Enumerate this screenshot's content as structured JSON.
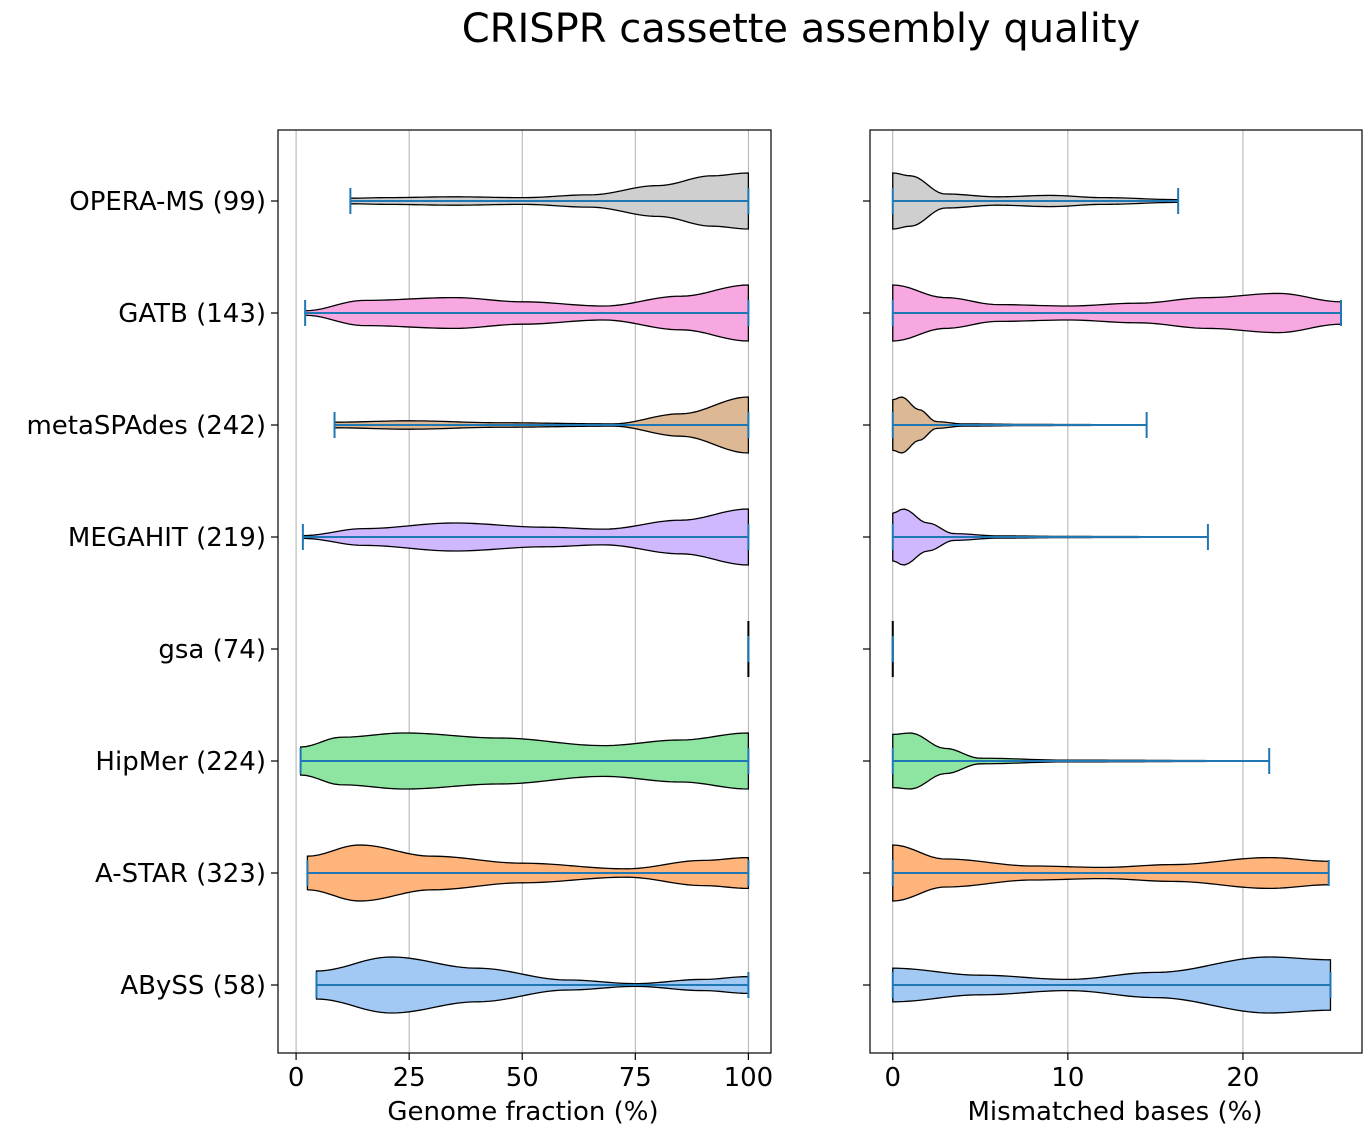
{
  "chart_data": {
    "type": "violin",
    "orientation": "horizontal",
    "title": "CRISPR cassette assembly quality",
    "categories": [
      "OPERA-MS (99)",
      "GATB (143)",
      "metaSPAdes (242)",
      "MEGAHIT (219)",
      "gsa (74)",
      "HipMer (224)",
      "A-STAR (323)",
      "ABySS (58)"
    ],
    "colors": {
      "OPERA-MS (99)": "#cfcfcf",
      "GATB (143)": "#f7a8e0",
      "metaSPAdes (242)": "#ddb895",
      "MEGAHIT (219)": "#d0b8ff",
      "gsa (74)": "#8fbc8f",
      "HipMer (224)": "#8de5a1",
      "A-STAR (323)": "#ffb47c",
      "ABySS (58)": "#a1c9f4",
      "range_line": "#1f77b4",
      "outline": "#000000",
      "grid": "#b0b0b0"
    },
    "panels": [
      {
        "xlabel": "Genome fraction (%)",
        "xlim": [
          -4,
          105
        ],
        "xticks": [
          0,
          25,
          50,
          75,
          100
        ],
        "grid": "x",
        "series": [
          {
            "category": "OPERA-MS (99)",
            "min": 12,
            "max": 100,
            "density": [
              [
                12,
                0.1
              ],
              [
                20,
                0.12
              ],
              [
                35,
                0.15
              ],
              [
                50,
                0.12
              ],
              [
                65,
                0.22
              ],
              [
                80,
                0.55
              ],
              [
                92,
                0.9
              ],
              [
                100,
                1.0
              ]
            ]
          },
          {
            "category": "GATB (143)",
            "min": 2,
            "max": 100,
            "density": [
              [
                2,
                0.08
              ],
              [
                15,
                0.45
              ],
              [
                35,
                0.55
              ],
              [
                50,
                0.4
              ],
              [
                68,
                0.25
              ],
              [
                85,
                0.6
              ],
              [
                100,
                1.0
              ]
            ]
          },
          {
            "category": "metaSPAdes (242)",
            "min": 8.5,
            "max": 100,
            "density": [
              [
                8.5,
                0.1
              ],
              [
                25,
                0.15
              ],
              [
                45,
                0.08
              ],
              [
                70,
                0.04
              ],
              [
                85,
                0.4
              ],
              [
                100,
                1.0
              ]
            ]
          },
          {
            "category": "MEGAHIT (219)",
            "min": 1.5,
            "max": 100,
            "density": [
              [
                1.5,
                0.05
              ],
              [
                15,
                0.3
              ],
              [
                35,
                0.5
              ],
              [
                55,
                0.35
              ],
              [
                68,
                0.28
              ],
              [
                85,
                0.6
              ],
              [
                100,
                1.0
              ]
            ]
          },
          {
            "category": "gsa (74)",
            "min": 100,
            "max": 100,
            "density": [
              [
                100,
                1.0
              ]
            ]
          },
          {
            "category": "HipMer (224)",
            "min": 1,
            "max": 100,
            "density": [
              [
                1,
                0.5
              ],
              [
                10,
                0.85
              ],
              [
                24,
                1.0
              ],
              [
                45,
                0.82
              ],
              [
                68,
                0.55
              ],
              [
                85,
                0.75
              ],
              [
                100,
                1.0
              ]
            ]
          },
          {
            "category": "A-STAR (323)",
            "min": 2.5,
            "max": 100,
            "density": [
              [
                2.5,
                0.6
              ],
              [
                14,
                1.0
              ],
              [
                30,
                0.6
              ],
              [
                50,
                0.35
              ],
              [
                73,
                0.15
              ],
              [
                90,
                0.45
              ],
              [
                100,
                0.55
              ]
            ]
          },
          {
            "category": "ABySS (58)",
            "min": 4.5,
            "max": 100,
            "density": [
              [
                4.5,
                0.5
              ],
              [
                21,
                1.0
              ],
              [
                40,
                0.6
              ],
              [
                60,
                0.18
              ],
              [
                75,
                0.05
              ],
              [
                90,
                0.2
              ],
              [
                100,
                0.3
              ]
            ]
          }
        ]
      },
      {
        "xlabel": "Mismatched bases (%)",
        "xlim": [
          -1.3,
          26.8
        ],
        "xticks": [
          0,
          10,
          20
        ],
        "grid": "x",
        "series": [
          {
            "category": "OPERA-MS (99)",
            "min": 0,
            "max": 16.3,
            "density": [
              [
                0,
                1.0
              ],
              [
                1,
                0.9
              ],
              [
                3,
                0.25
              ],
              [
                6,
                0.15
              ],
              [
                9,
                0.2
              ],
              [
                12,
                0.12
              ],
              [
                16.3,
                0.05
              ]
            ]
          },
          {
            "category": "GATB (143)",
            "min": 0,
            "max": 25.6,
            "density": [
              [
                0,
                1.0
              ],
              [
                3,
                0.55
              ],
              [
                6,
                0.3
              ],
              [
                10,
                0.25
              ],
              [
                14,
                0.35
              ],
              [
                18,
                0.55
              ],
              [
                22,
                0.7
              ],
              [
                25.6,
                0.4
              ]
            ]
          },
          {
            "category": "metaSPAdes (242)",
            "min": 0,
            "max": 14.5,
            "density": [
              [
                0,
                0.9
              ],
              [
                0.5,
                1.0
              ],
              [
                1.5,
                0.55
              ],
              [
                2.5,
                0.12
              ],
              [
                4,
                0.04
              ],
              [
                8,
                0.02
              ],
              [
                14.5,
                0.01
              ]
            ]
          },
          {
            "category": "MEGAHIT (219)",
            "min": 0,
            "max": 18.0,
            "density": [
              [
                0,
                0.85
              ],
              [
                0.6,
                1.0
              ],
              [
                2,
                0.5
              ],
              [
                3.5,
                0.12
              ],
              [
                6,
                0.04
              ],
              [
                10,
                0.02
              ],
              [
                18,
                0.01
              ]
            ]
          },
          {
            "category": "gsa (74)",
            "min": 0,
            "max": 0,
            "density": [
              [
                0,
                1.0
              ]
            ]
          },
          {
            "category": "HipMer (224)",
            "min": 0,
            "max": 21.5,
            "density": [
              [
                0,
                0.95
              ],
              [
                1,
                1.0
              ],
              [
                3,
                0.45
              ],
              [
                5,
                0.1
              ],
              [
                10,
                0.03
              ],
              [
                21.5,
                0.01
              ]
            ]
          },
          {
            "category": "A-STAR (323)",
            "min": 0,
            "max": 24.9,
            "density": [
              [
                0,
                1.0
              ],
              [
                3,
                0.5
              ],
              [
                8,
                0.25
              ],
              [
                12,
                0.2
              ],
              [
                16,
                0.3
              ],
              [
                21.5,
                0.55
              ],
              [
                24.9,
                0.42
              ]
            ]
          },
          {
            "category": "ABySS (58)",
            "min": 0,
            "max": 25.0,
            "density": [
              [
                0,
                0.6
              ],
              [
                5,
                0.35
              ],
              [
                10,
                0.2
              ],
              [
                15,
                0.45
              ],
              [
                21.5,
                1.0
              ],
              [
                25,
                0.9
              ]
            ]
          }
        ]
      }
    ]
  }
}
